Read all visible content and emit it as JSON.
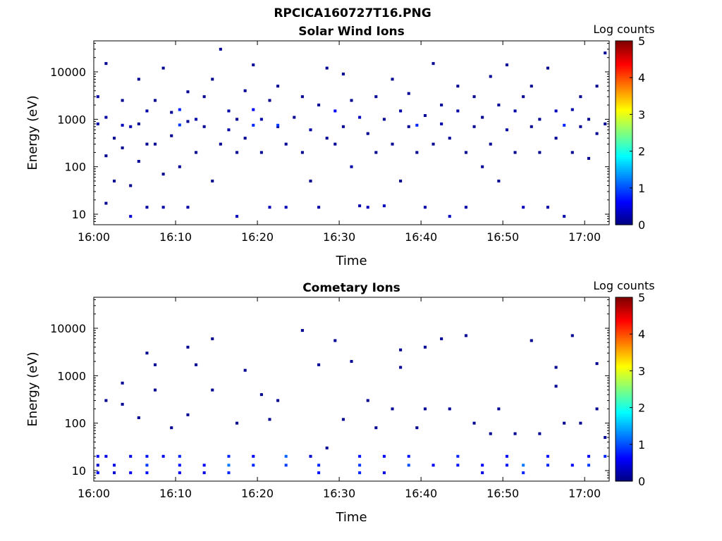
{
  "figure": {
    "suptitle": "RPCICA160727T16.PNG"
  },
  "colors": {
    "colormap": [
      "#00007f",
      "#0000ff",
      "#007fff",
      "#00ffff",
      "#7fff7f",
      "#ffff00",
      "#ff7f00",
      "#ff0000",
      "#7f0000"
    ]
  },
  "chart_data": [
    {
      "type": "heatmap",
      "title": "Solar Wind Ions",
      "xlabel": "Time",
      "ylabel": "Energy (eV)",
      "yscale": "log",
      "xlim": [
        "16:00",
        "17:03"
      ],
      "ylim": [
        6,
        45000
      ],
      "xticks": [
        "16:00",
        "16:10",
        "16:20",
        "16:30",
        "16:40",
        "16:50",
        "17:00"
      ],
      "yticks": [
        "10",
        "100",
        "1000",
        "10000"
      ],
      "colorbar": {
        "label": "Log counts",
        "range": [
          0,
          5
        ],
        "ticks": [
          "0",
          "1",
          "2",
          "3",
          "4",
          "5"
        ]
      },
      "grid": false,
      "points": [
        [
          "16:00",
          800,
          0.2
        ],
        [
          "16:00",
          3000,
          0.2
        ],
        [
          "16:01",
          170,
          0.1
        ],
        [
          "16:01",
          17,
          0.1
        ],
        [
          "16:01",
          1100,
          0.2
        ],
        [
          "16:01",
          15000,
          0.1
        ],
        [
          "16:02",
          400,
          0.1
        ],
        [
          "16:02",
          50,
          0.1
        ],
        [
          "16:03",
          750,
          0.3
        ],
        [
          "16:03",
          250,
          0.1
        ],
        [
          "16:03",
          2500,
          0.1
        ],
        [
          "16:04",
          40,
          0.1
        ],
        [
          "16:04",
          9,
          0.4
        ],
        [
          "16:04",
          700,
          0.2
        ],
        [
          "16:05",
          130,
          0.1
        ],
        [
          "16:05",
          800,
          0.1
        ],
        [
          "16:05",
          7000,
          0.1
        ],
        [
          "16:06",
          300,
          0.1
        ],
        [
          "16:06",
          1500,
          0.2
        ],
        [
          "16:06",
          14,
          0.2
        ],
        [
          "16:07",
          2500,
          0.1
        ],
        [
          "16:07",
          300,
          0.1
        ],
        [
          "16:08",
          70,
          0.1
        ],
        [
          "16:08",
          14,
          0.2
        ],
        [
          "16:08",
          12000,
          0.1
        ],
        [
          "16:09",
          1400,
          0.1
        ],
        [
          "16:09",
          450,
          0.1
        ],
        [
          "16:10",
          760,
          0.9
        ],
        [
          "16:10",
          1600,
          0.8
        ],
        [
          "16:10",
          100,
          0.1
        ],
        [
          "16:11",
          14,
          0.2
        ],
        [
          "16:11",
          900,
          0.1
        ],
        [
          "16:11",
          3800,
          0.1
        ],
        [
          "16:12",
          1000,
          0.2
        ],
        [
          "16:12",
          200,
          0.1
        ],
        [
          "16:13",
          700,
          0.1
        ],
        [
          "16:13",
          3000,
          0.1
        ],
        [
          "16:14",
          50,
          0.1
        ],
        [
          "16:14",
          7000,
          0.1
        ],
        [
          "16:15",
          300,
          0.1
        ],
        [
          "16:15",
          30000,
          0.1
        ],
        [
          "16:16",
          1500,
          0.2
        ],
        [
          "16:16",
          600,
          0.2
        ],
        [
          "16:17",
          9,
          0.3
        ],
        [
          "16:17",
          200,
          0.1
        ],
        [
          "16:17",
          1000,
          0.1
        ],
        [
          "16:18",
          400,
          0.1
        ],
        [
          "16:18",
          4000,
          0.1
        ],
        [
          "16:19",
          750,
          0.8
        ],
        [
          "16:19",
          1600,
          0.6
        ],
        [
          "16:19",
          14000,
          0.1
        ],
        [
          "16:20",
          200,
          0.1
        ],
        [
          "16:20",
          1000,
          0.2
        ],
        [
          "16:21",
          14,
          0.3
        ],
        [
          "16:21",
          2500,
          0.1
        ],
        [
          "16:22",
          700,
          0.1
        ],
        [
          "16:22",
          5000,
          0.1
        ],
        [
          "16:22",
          750,
          0.9
        ],
        [
          "16:23",
          14,
          0.3
        ],
        [
          "16:23",
          300,
          0.1
        ],
        [
          "16:24",
          1100,
          0.1
        ],
        [
          "16:25",
          200,
          0.1
        ],
        [
          "16:25",
          3000,
          0.1
        ],
        [
          "16:26",
          50,
          0.1
        ],
        [
          "16:26",
          600,
          0.2
        ],
        [
          "16:27",
          14,
          0.2
        ],
        [
          "16:27",
          2000,
          0.1
        ],
        [
          "16:28",
          400,
          0.1
        ],
        [
          "16:28",
          12000,
          0.1
        ],
        [
          "16:29",
          1500,
          0.6
        ],
        [
          "16:29",
          300,
          0.1
        ],
        [
          "16:30",
          700,
          0.1
        ],
        [
          "16:30",
          9000,
          0.1
        ],
        [
          "16:31",
          100,
          0.2
        ],
        [
          "16:31",
          2500,
          0.1
        ],
        [
          "16:32",
          1100,
          0.3
        ],
        [
          "16:32",
          15,
          0.2
        ],
        [
          "16:33",
          14,
          0.3
        ],
        [
          "16:33",
          500,
          0.1
        ],
        [
          "16:34",
          3000,
          0.1
        ],
        [
          "16:34",
          200,
          0.1
        ],
        [
          "16:35",
          15,
          0.3
        ],
        [
          "16:35",
          1000,
          0.1
        ],
        [
          "16:36",
          7000,
          0.1
        ],
        [
          "16:36",
          300,
          0.1
        ],
        [
          "16:37",
          1500,
          0.2
        ],
        [
          "16:37",
          50,
          0.1
        ],
        [
          "16:38",
          700,
          0.1
        ],
        [
          "16:38",
          3500,
          0.1
        ],
        [
          "16:39",
          750,
          0.8
        ],
        [
          "16:39",
          200,
          0.1
        ],
        [
          "16:40",
          1200,
          0.1
        ],
        [
          "16:40",
          14,
          0.2
        ],
        [
          "16:41",
          300,
          0.1
        ],
        [
          "16:41",
          15000,
          0.1
        ],
        [
          "16:42",
          800,
          0.2
        ],
        [
          "16:42",
          2000,
          0.1
        ],
        [
          "16:43",
          9,
          0.3
        ],
        [
          "16:43",
          400,
          0.1
        ],
        [
          "16:44",
          1500,
          0.2
        ],
        [
          "16:44",
          5000,
          0.1
        ],
        [
          "16:45",
          200,
          0.1
        ],
        [
          "16:45",
          14,
          0.2
        ],
        [
          "16:46",
          700,
          0.1
        ],
        [
          "16:46",
          3000,
          0.1
        ],
        [
          "16:47",
          100,
          0.1
        ],
        [
          "16:47",
          1100,
          0.1
        ],
        [
          "16:48",
          8000,
          0.1
        ],
        [
          "16:48",
          300,
          0.1
        ],
        [
          "16:49",
          2000,
          0.1
        ],
        [
          "16:49",
          50,
          0.1
        ],
        [
          "16:50",
          600,
          0.2
        ],
        [
          "16:50",
          14000,
          0.1
        ],
        [
          "16:51",
          200,
          0.1
        ],
        [
          "16:51",
          1500,
          0.2
        ],
        [
          "16:52",
          14,
          0.3
        ],
        [
          "16:52",
          3000,
          0.1
        ],
        [
          "16:53",
          700,
          0.1
        ],
        [
          "16:53",
          5000,
          0.1
        ],
        [
          "16:54",
          1000,
          0.1
        ],
        [
          "16:54",
          200,
          0.1
        ],
        [
          "16:55",
          14,
          0.2
        ],
        [
          "16:55",
          12000,
          0.1
        ],
        [
          "16:56",
          1500,
          0.3
        ],
        [
          "16:56",
          400,
          0.1
        ],
        [
          "16:57",
          9,
          0.2
        ],
        [
          "16:57",
          750,
          0.8
        ],
        [
          "16:58",
          1600,
          0.2
        ],
        [
          "16:58",
          200,
          0.1
        ],
        [
          "16:59",
          3000,
          0.1
        ],
        [
          "16:59",
          700,
          0.1
        ],
        [
          "17:00",
          1000,
          0.1
        ],
        [
          "17:00",
          150,
          0.1
        ],
        [
          "17:01",
          500,
          0.1
        ],
        [
          "17:01",
          5000,
          0.1
        ],
        [
          "17:02",
          800,
          0.1
        ],
        [
          "17:02",
          25000,
          0.1
        ]
      ]
    },
    {
      "type": "heatmap",
      "title": "Cometary Ions",
      "xlabel": "Time",
      "ylabel": "Energy (eV)",
      "yscale": "log",
      "xlim": [
        "16:00",
        "17:03"
      ],
      "ylim": [
        6,
        45000
      ],
      "xticks": [
        "16:00",
        "16:10",
        "16:20",
        "16:30",
        "16:40",
        "16:50",
        "17:00"
      ],
      "yticks": [
        "10",
        "100",
        "1000",
        "10000"
      ],
      "colorbar": {
        "label": "Log counts",
        "range": [
          0,
          5
        ],
        "ticks": [
          "0",
          "1",
          "2",
          "3",
          "4",
          "5"
        ]
      },
      "grid": false,
      "points": [
        [
          "16:00",
          20,
          0.6
        ],
        [
          "16:00",
          13,
          0.4
        ],
        [
          "16:00",
          9,
          0.6
        ],
        [
          "16:01",
          300,
          0.1
        ],
        [
          "16:01",
          20,
          0.5
        ],
        [
          "16:02",
          9,
          0.4
        ],
        [
          "16:02",
          13,
          0.5
        ],
        [
          "16:03",
          250,
          0.1
        ],
        [
          "16:03",
          700,
          0.1
        ],
        [
          "16:04",
          20,
          0.5
        ],
        [
          "16:04",
          9,
          0.6
        ],
        [
          "16:05",
          130,
          0.1
        ],
        [
          "16:06",
          3000,
          0.1
        ],
        [
          "16:06",
          20,
          0.7
        ],
        [
          "16:06",
          13,
          0.9
        ],
        [
          "16:06",
          9,
          0.7
        ],
        [
          "16:07",
          1700,
          0.1
        ],
        [
          "16:07",
          500,
          0.1
        ],
        [
          "16:08",
          20,
          0.6
        ],
        [
          "16:09",
          80,
          0.1
        ],
        [
          "16:10",
          20,
          0.8
        ],
        [
          "16:10",
          13,
          0.7
        ],
        [
          "16:10",
          9,
          0.6
        ],
        [
          "16:11",
          4000,
          0.1
        ],
        [
          "16:11",
          150,
          0.1
        ],
        [
          "16:12",
          1700,
          0.1
        ],
        [
          "16:13",
          13,
          0.6
        ],
        [
          "16:13",
          9,
          0.5
        ],
        [
          "16:14",
          6000,
          0.1
        ],
        [
          "16:14",
          500,
          0.1
        ],
        [
          "16:16",
          20,
          0.8
        ],
        [
          "16:16",
          13,
          1.2
        ],
        [
          "16:16",
          9,
          0.8
        ],
        [
          "16:17",
          100,
          0.1
        ],
        [
          "16:18",
          1300,
          0.1
        ],
        [
          "16:19",
          20,
          0.6
        ],
        [
          "16:19",
          13,
          0.8
        ],
        [
          "16:20",
          400,
          0.1
        ],
        [
          "16:21",
          120,
          0.1
        ],
        [
          "16:22",
          300,
          0.1
        ],
        [
          "16:23",
          20,
          1.1
        ],
        [
          "16:23",
          13,
          0.9
        ],
        [
          "16:25",
          9000,
          0.1
        ],
        [
          "16:26",
          20,
          0.4
        ],
        [
          "16:27",
          1700,
          0.1
        ],
        [
          "16:27",
          13,
          0.8
        ],
        [
          "16:27",
          9,
          0.7
        ],
        [
          "16:28",
          30,
          0.1
        ],
        [
          "16:29",
          5500,
          0.1
        ],
        [
          "16:30",
          120,
          0.1
        ],
        [
          "16:31",
          2000,
          0.1
        ],
        [
          "16:32",
          20,
          0.7
        ],
        [
          "16:32",
          13,
          0.9
        ],
        [
          "16:32",
          9,
          0.8
        ],
        [
          "16:33",
          300,
          0.1
        ],
        [
          "16:34",
          80,
          0.1
        ],
        [
          "16:35",
          20,
          0.6
        ],
        [
          "16:35",
          9,
          0.5
        ],
        [
          "16:36",
          200,
          0.1
        ],
        [
          "16:37",
          3500,
          0.1
        ],
        [
          "16:37",
          1500,
          0.1
        ],
        [
          "16:38",
          20,
          0.7
        ],
        [
          "16:38",
          13,
          1.0
        ],
        [
          "16:39",
          80,
          0.1
        ],
        [
          "16:40",
          4000,
          0.1
        ],
        [
          "16:40",
          200,
          0.1
        ],
        [
          "16:41",
          13,
          0.6
        ],
        [
          "16:42",
          6000,
          0.1
        ],
        [
          "16:43",
          200,
          0.1
        ],
        [
          "16:44",
          20,
          0.8
        ],
        [
          "16:44",
          13,
          0.7
        ],
        [
          "16:45",
          7000,
          0.1
        ],
        [
          "16:46",
          100,
          0.1
        ],
        [
          "16:47",
          13,
          0.6
        ],
        [
          "16:47",
          9,
          0.5
        ],
        [
          "16:48",
          60,
          0.1
        ],
        [
          "16:49",
          200,
          0.1
        ],
        [
          "16:50",
          20,
          0.6
        ],
        [
          "16:50",
          13,
          0.7
        ],
        [
          "16:51",
          60,
          0.1
        ],
        [
          "16:52",
          13,
          1.2
        ],
        [
          "16:52",
          9,
          0.8
        ],
        [
          "16:53",
          5500,
          0.1
        ],
        [
          "16:54",
          60,
          0.1
        ],
        [
          "16:55",
          20,
          0.7
        ],
        [
          "16:55",
          13,
          0.8
        ],
        [
          "16:56",
          1500,
          0.1
        ],
        [
          "16:56",
          600,
          0.1
        ],
        [
          "16:57",
          100,
          0.1
        ],
        [
          "16:58",
          13,
          0.6
        ],
        [
          "16:58",
          7000,
          0.1
        ],
        [
          "16:59",
          100,
          0.1
        ],
        [
          "17:00",
          20,
          0.6
        ],
        [
          "17:00",
          13,
          0.9
        ],
        [
          "17:01",
          1800,
          0.1
        ],
        [
          "17:01",
          200,
          0.1
        ],
        [
          "17:02",
          20,
          0.8
        ],
        [
          "17:02",
          50,
          0.1
        ]
      ]
    }
  ]
}
